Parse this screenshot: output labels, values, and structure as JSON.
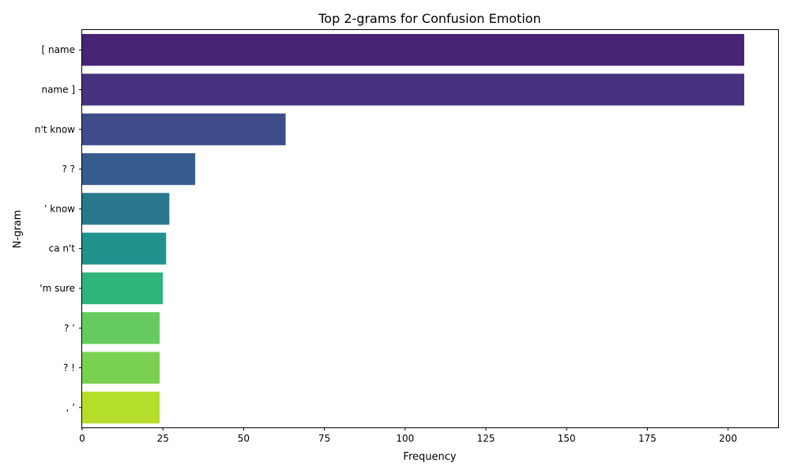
{
  "chart_data": {
    "type": "bar",
    "orientation": "horizontal",
    "title": "Top 2-grams for Confusion Emotion",
    "xlabel": "Frequency",
    "ylabel": "N-gram",
    "categories": [
      "[ name",
      "name ]",
      "n't know",
      "? ?",
      "’ know",
      "ca n't",
      "'m sure",
      "? ’",
      "? !",
      ", ’"
    ],
    "values": [
      205,
      205,
      63,
      35,
      27,
      26,
      25,
      24,
      24,
      24
    ],
    "colors": [
      "#482475",
      "#46327e",
      "#3e4c8a",
      "#365c8d",
      "#2a788e",
      "#21918c",
      "#2fb47c",
      "#65cb5e",
      "#7ad151",
      "#b5de2b"
    ],
    "xlim": [
      0,
      215.5
    ],
    "xticks": [
      0,
      25,
      50,
      75,
      100,
      125,
      150,
      175,
      200
    ],
    "grid": false,
    "legend": "none"
  }
}
